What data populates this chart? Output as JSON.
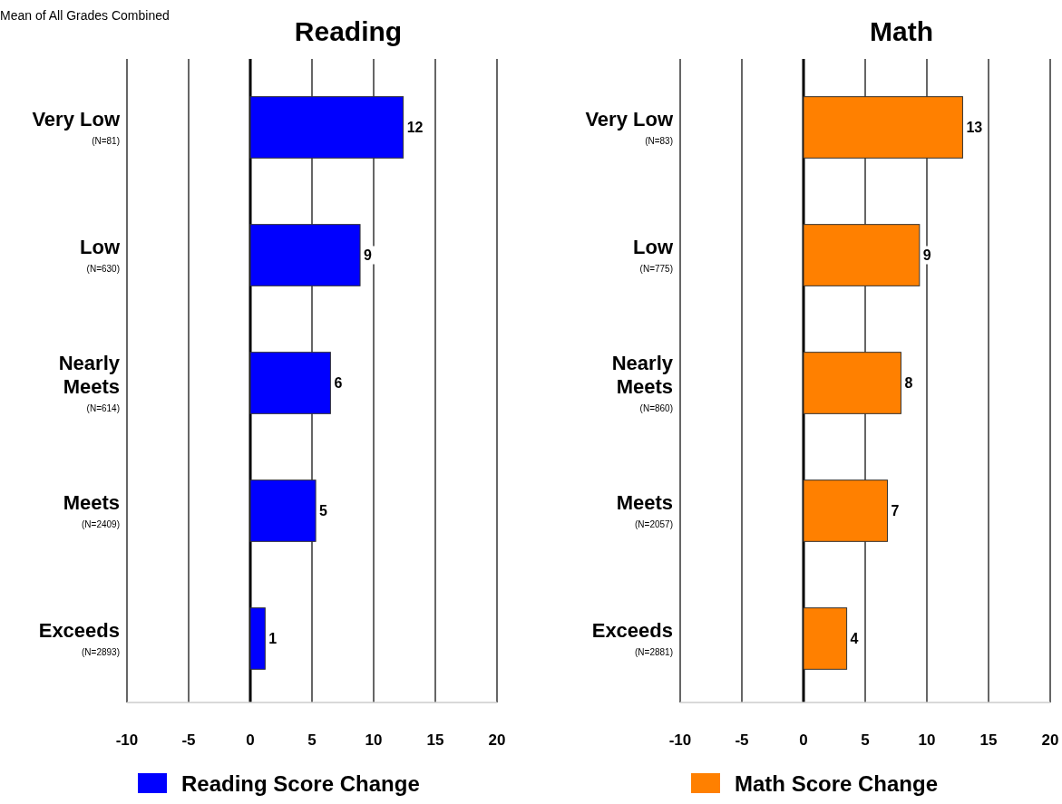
{
  "chart_data": [
    {
      "type": "bar",
      "orientation": "horizontal",
      "title": "Reading",
      "annotations": [
        "Mean of All Grades Combined"
      ],
      "categories": [
        "Very Low\n(N=81)",
        "Low\n(N=630)",
        "Nearly\nMeets\n(N=614)",
        "Meets\n(N=2409)",
        "Exceeds\n(N=2893)"
      ],
      "series": [
        {
          "name": "Reading Score Change",
          "color": "#0000ff",
          "values": [
            12.4,
            8.9,
            6.5,
            5.3,
            1.2
          ],
          "value_labels": [
            "12",
            "9",
            "6",
            "5",
            "1"
          ]
        }
      ],
      "xlim": [
        -10,
        20
      ],
      "xticks": [
        -10,
        -5,
        0,
        5,
        10,
        15,
        20
      ],
      "grid": "x",
      "legend": "bottom"
    },
    {
      "type": "bar",
      "orientation": "horizontal",
      "title": "Math",
      "categories": [
        "Very Low\n(N=83)",
        "Low\n(N=775)",
        "Nearly\nMeets\n(N=860)",
        "Meets\n(N=2057)",
        "Exceeds\n(N=2881)"
      ],
      "series": [
        {
          "name": "Math Score Change",
          "color": "#ff8000",
          "values": [
            12.9,
            9.4,
            7.9,
            6.8,
            3.5
          ],
          "value_labels": [
            "13",
            "9",
            "8",
            "7",
            "4"
          ]
        }
      ],
      "xlim": [
        -10,
        20
      ],
      "xticks": [
        -10,
        -5,
        0,
        5,
        10,
        15,
        20
      ],
      "grid": "x",
      "legend": "bottom"
    }
  ]
}
